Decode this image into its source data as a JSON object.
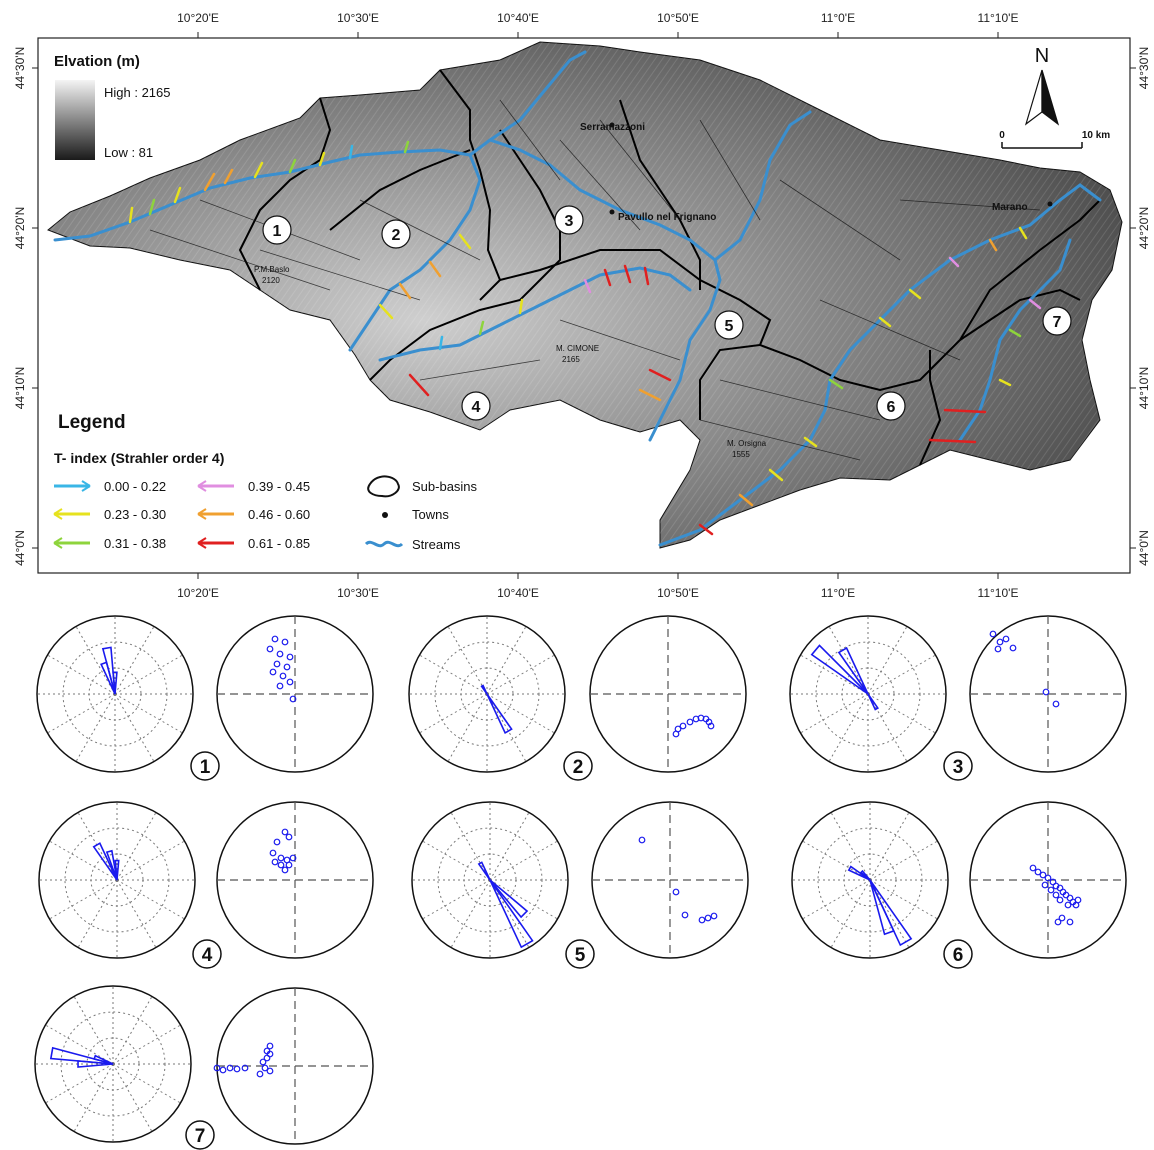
{
  "map": {
    "lon_labels": [
      "10°20'E",
      "10°30'E",
      "10°40'E",
      "10°50'E",
      "11°0'E",
      "11°10'E"
    ],
    "lat_labels": [
      "44°30'N",
      "44°20'N",
      "44°10'N",
      "44°0'N"
    ],
    "elevation": {
      "title": "Elvation (m)",
      "high_label": "High : 2165",
      "low_label": "Low : 81"
    },
    "north_label": "N",
    "scale": {
      "start_label": "0",
      "end_label": "10 km"
    },
    "legend": {
      "title": "Legend",
      "subtitle": "T- index (Strahler order 4)",
      "classes": [
        {
          "label": "0.00 - 0.22",
          "color": "#39b6e6"
        },
        {
          "label": "0.23 - 0.30",
          "color": "#e6e21e"
        },
        {
          "label": "0.31 - 0.38",
          "color": "#8ed43c"
        },
        {
          "label": "0.39 - 0.45",
          "color": "#e08ee0"
        },
        {
          "label": "0.46 - 0.60",
          "color": "#f0a030"
        },
        {
          "label": "0.61 - 0.85",
          "color": "#e02020"
        }
      ],
      "symbols": [
        {
          "label": "Sub-basins",
          "icon": "sub-basin-outline-icon"
        },
        {
          "label": "Towns",
          "icon": "town-dot-icon"
        },
        {
          "label": "Streams",
          "icon": "stream-line-icon",
          "color": "#3a8fcf"
        }
      ]
    },
    "towns": [
      "Serramazzoni",
      "Pavullo nel Frignano",
      "Marano"
    ],
    "peaks": [
      {
        "name": "P.M.Baslo",
        "elevation": "2120"
      },
      {
        "name": "M. CIMONE",
        "elevation": "2165"
      },
      {
        "name": "M. Orsigna",
        "elevation": "1555"
      }
    ],
    "basin_labels": [
      "1",
      "2",
      "3",
      "4",
      "5",
      "6",
      "7"
    ]
  },
  "panels": [
    {
      "label": "1",
      "rose": [
        {
          "az": 350,
          "len": 0.6
        },
        {
          "az": 340,
          "len": 0.42
        },
        {
          "az": 0,
          "len": 0.28
        }
      ],
      "points": [
        [
          -20,
          55
        ],
        [
          -10,
          52
        ],
        [
          -25,
          45
        ],
        [
          -15,
          40
        ],
        [
          -5,
          37
        ],
        [
          -18,
          30
        ],
        [
          -8,
          27
        ],
        [
          -22,
          22
        ],
        [
          -12,
          18
        ],
        [
          -5,
          12
        ],
        [
          -15,
          8
        ],
        [
          -2,
          -5
        ]
      ]
    },
    {
      "label": "2",
      "rose": [
        {
          "az": 150,
          "len": 0.55
        },
        {
          "az": 330,
          "len": 0.12
        }
      ],
      "points": [
        [
          15,
          -32
        ],
        [
          22,
          -28
        ],
        [
          28,
          -25
        ],
        [
          33,
          -24
        ],
        [
          38,
          -25
        ],
        [
          41,
          -28
        ],
        [
          43,
          -32
        ],
        [
          8,
          -40
        ],
        [
          10,
          -35
        ]
      ]
    },
    {
      "label": "3",
      "rose": [
        {
          "az": 310,
          "len": 0.88
        },
        {
          "az": 330,
          "len": 0.65
        },
        {
          "az": 150,
          "len": 0.22
        }
      ],
      "points": [
        [
          -55,
          60
        ],
        [
          -48,
          52
        ],
        [
          -42,
          55
        ],
        [
          -35,
          46
        ],
        [
          -50,
          45
        ],
        [
          -2,
          2
        ],
        [
          8,
          -10
        ]
      ]
    },
    {
      "label": "4",
      "rose": [
        {
          "az": 330,
          "len": 0.52
        },
        {
          "az": 345,
          "len": 0.38
        },
        {
          "az": 0,
          "len": 0.25
        }
      ],
      "points": [
        [
          -10,
          48
        ],
        [
          -6,
          43
        ],
        [
          -18,
          38
        ],
        [
          -22,
          27
        ],
        [
          -14,
          22
        ],
        [
          -8,
          20
        ],
        [
          -2,
          22
        ],
        [
          -6,
          15
        ],
        [
          -14,
          15
        ],
        [
          -20,
          18
        ],
        [
          -10,
          10
        ]
      ]
    },
    {
      "label": "5",
      "rose": [
        {
          "az": 150,
          "len": 0.95
        },
        {
          "az": 135,
          "len": 0.62
        },
        {
          "az": 330,
          "len": 0.25
        }
      ],
      "points": [
        [
          -28,
          40
        ],
        [
          6,
          -12
        ],
        [
          15,
          -35
        ],
        [
          32,
          -40
        ],
        [
          38,
          -38
        ],
        [
          44,
          -36
        ]
      ]
    },
    {
      "label": "6",
      "rose": [
        {
          "az": 150,
          "len": 0.92
        },
        {
          "az": 160,
          "len": 0.72
        },
        {
          "az": 300,
          "len": 0.3
        },
        {
          "az": 315,
          "len": 0.15
        }
      ],
      "points": [
        [
          -15,
          12
        ],
        [
          -10,
          8
        ],
        [
          -5,
          5
        ],
        [
          0,
          2
        ],
        [
          5,
          -2
        ],
        [
          8,
          -6
        ],
        [
          12,
          -8
        ],
        [
          15,
          -12
        ],
        [
          18,
          -15
        ],
        [
          22,
          -18
        ],
        [
          25,
          -22
        ],
        [
          28,
          -25
        ],
        [
          30,
          -20
        ],
        [
          20,
          -25
        ],
        [
          12,
          -20
        ],
        [
          8,
          -15
        ],
        [
          3,
          -10
        ],
        [
          -3,
          -5
        ],
        [
          14,
          -38
        ],
        [
          22,
          -42
        ],
        [
          10,
          -42
        ]
      ]
    },
    {
      "label": "7",
      "rose": [
        {
          "az": 280,
          "len": 0.8
        },
        {
          "az": 270,
          "len": 0.45
        },
        {
          "az": 290,
          "len": 0.25
        }
      ],
      "points": [
        [
          -78,
          -2
        ],
        [
          -72,
          -4
        ],
        [
          -65,
          -2
        ],
        [
          -58,
          -3
        ],
        [
          -50,
          -2
        ],
        [
          -32,
          4
        ],
        [
          -28,
          8
        ],
        [
          -25,
          12
        ],
        [
          -28,
          15
        ],
        [
          -25,
          20
        ],
        [
          -30,
          -2
        ],
        [
          -35,
          -8
        ],
        [
          -25,
          -5
        ]
      ]
    }
  ]
}
